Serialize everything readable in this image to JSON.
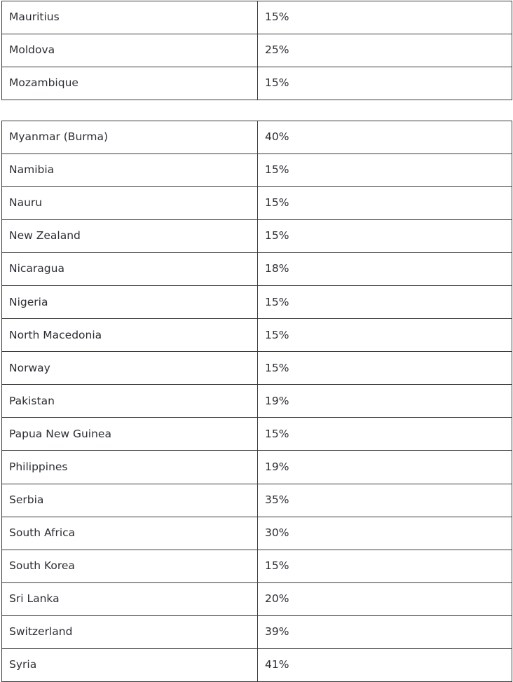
{
  "tables": [
    {
      "rows": [
        {
          "country": "Mauritius",
          "rate": "15%"
        },
        {
          "country": "Moldova",
          "rate": "25%"
        },
        {
          "country": "Mozambique",
          "rate": "15%"
        }
      ]
    },
    {
      "rows": [
        {
          "country": "Myanmar (Burma)",
          "rate": "40%"
        },
        {
          "country": "Namibia",
          "rate": "15%"
        },
        {
          "country": "Nauru",
          "rate": "15%"
        },
        {
          "country": "New Zealand",
          "rate": "15%"
        },
        {
          "country": "Nicaragua",
          "rate": "18%"
        },
        {
          "country": "Nigeria",
          "rate": "15%"
        },
        {
          "country": "North Macedonia",
          "rate": "15%"
        },
        {
          "country": "Norway",
          "rate": "15%"
        },
        {
          "country": "Pakistan",
          "rate": "19%"
        },
        {
          "country": "Papua New Guinea",
          "rate": "15%"
        },
        {
          "country": "Philippines",
          "rate": "19%"
        },
        {
          "country": "Serbia",
          "rate": "35%"
        },
        {
          "country": "South Africa",
          "rate": "30%"
        },
        {
          "country": "South Korea",
          "rate": "15%"
        },
        {
          "country": "Sri Lanka",
          "rate": "20%"
        },
        {
          "country": "Switzerland",
          "rate": "39%"
        },
        {
          "country": "Syria",
          "rate": "41%"
        }
      ]
    }
  ]
}
